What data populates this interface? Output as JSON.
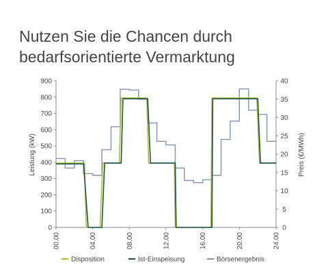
{
  "title_lines": [
    "Nutzen Sie die Chancen durch",
    "bedarfsorientierte Vermarktung"
  ],
  "chart_data": {
    "type": "line",
    "xlabel": "",
    "ylabel": "Leistung (kW)",
    "y2label": "Preis (€/MWh)",
    "x_ticks": [
      "00.00",
      "04.00",
      "08.00",
      "12.00",
      "16.00",
      "20.00",
      "24.00"
    ],
    "xlim": [
      0,
      24
    ],
    "ylim": [
      0,
      900
    ],
    "y_ticks": [
      0,
      100,
      200,
      300,
      400,
      500,
      600,
      700,
      800,
      900
    ],
    "y2lim": [
      0,
      40
    ],
    "y2_ticks": [
      0,
      5,
      10,
      15,
      20,
      25,
      30,
      35,
      40
    ],
    "grid": false,
    "legend_position": "bottom",
    "series": [
      {
        "name": "Disposition",
        "axis": "left",
        "color": "#a8c520",
        "points": [
          [
            0,
            395
          ],
          [
            3.1,
            395
          ],
          [
            3.3,
            0
          ],
          [
            4.8,
            0
          ],
          [
            5.1,
            395
          ],
          [
            6.9,
            395
          ],
          [
            7.1,
            795
          ],
          [
            9.9,
            795
          ],
          [
            10.1,
            395
          ],
          [
            12.9,
            395
          ],
          [
            13.0,
            0
          ],
          [
            16.9,
            0
          ],
          [
            17.0,
            795
          ],
          [
            21.9,
            795
          ],
          [
            22.2,
            395
          ],
          [
            24,
            395
          ]
        ]
      },
      {
        "name": "Ist-Einspeisung",
        "axis": "left",
        "color": "#1f4e5f",
        "points": [
          [
            0,
            390
          ],
          [
            3.0,
            390
          ],
          [
            3.5,
            0
          ],
          [
            5.0,
            0
          ],
          [
            5.3,
            395
          ],
          [
            7.1,
            395
          ],
          [
            7.3,
            790
          ],
          [
            10.0,
            790
          ],
          [
            10.3,
            395
          ],
          [
            13.0,
            395
          ],
          [
            13.1,
            0
          ],
          [
            17.0,
            0
          ],
          [
            17.1,
            790
          ],
          [
            22.0,
            790
          ],
          [
            22.3,
            395
          ],
          [
            24,
            395
          ]
        ]
      },
      {
        "name": "Börsenergebnis",
        "axis": "right",
        "color": "#7f93b4",
        "points": [
          [
            0,
            18.8
          ],
          [
            1,
            18.8
          ],
          [
            1,
            16.2
          ],
          [
            2,
            16.2
          ],
          [
            2,
            18.2
          ],
          [
            3,
            18.2
          ],
          [
            3,
            14.7
          ],
          [
            4,
            14.7
          ],
          [
            4,
            14.2
          ],
          [
            5,
            14.2
          ],
          [
            5,
            21.2
          ],
          [
            6,
            21.2
          ],
          [
            6,
            27.5
          ],
          [
            7,
            27.5
          ],
          [
            7,
            37.7
          ],
          [
            8,
            37.7
          ],
          [
            8,
            37.5
          ],
          [
            9,
            37.5
          ],
          [
            9,
            35.0
          ],
          [
            10,
            35.0
          ],
          [
            10,
            28.5
          ],
          [
            11,
            28.5
          ],
          [
            11,
            23.5
          ],
          [
            12,
            23.5
          ],
          [
            12,
            22.5
          ],
          [
            13,
            22.5
          ],
          [
            13,
            16.2
          ],
          [
            14,
            16.2
          ],
          [
            14,
            12.8
          ],
          [
            15,
            12.8
          ],
          [
            15,
            12.2
          ],
          [
            16,
            12.2
          ],
          [
            16,
            13.0
          ],
          [
            17,
            13.0
          ],
          [
            17,
            14.2
          ],
          [
            18,
            14.2
          ],
          [
            18,
            24.0
          ],
          [
            19,
            24.0
          ],
          [
            19,
            29.0
          ],
          [
            20,
            29.0
          ],
          [
            20,
            37.8
          ],
          [
            21,
            37.8
          ],
          [
            21,
            32.0
          ],
          [
            22,
            32.0
          ],
          [
            22,
            30.8
          ],
          [
            23,
            30.8
          ],
          [
            23,
            23.5
          ],
          [
            24,
            23.5
          ]
        ]
      }
    ]
  }
}
